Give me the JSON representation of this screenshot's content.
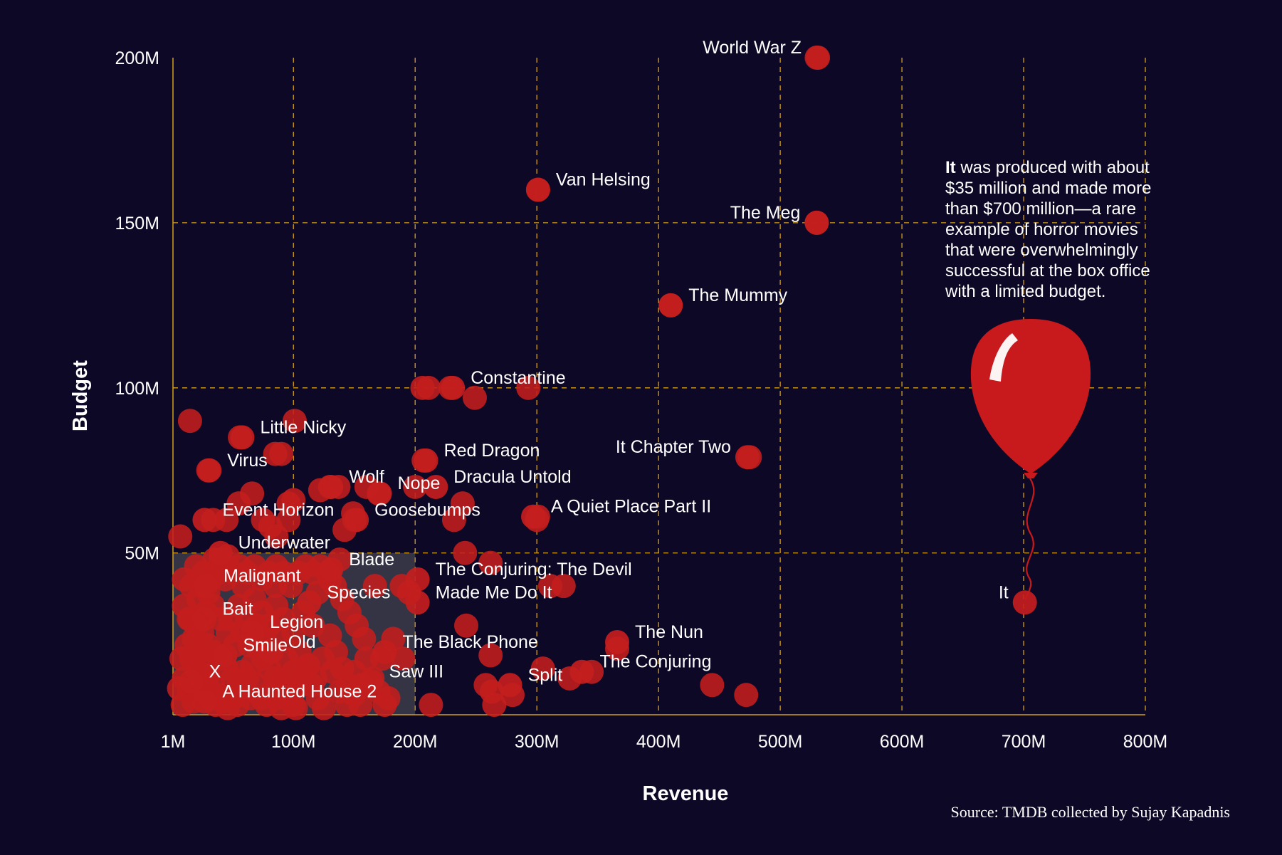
{
  "chart_data": {
    "type": "scatter",
    "xlabel": "Revenue",
    "ylabel": "Budget",
    "xlim": [
      1,
      800
    ],
    "ylim": [
      1,
      200
    ],
    "x_ticks": [
      {
        "v": 1,
        "label": "1M"
      },
      {
        "v": 100,
        "label": "100M"
      },
      {
        "v": 200,
        "label": "200M"
      },
      {
        "v": 300,
        "label": "300M"
      },
      {
        "v": 400,
        "label": "400M"
      },
      {
        "v": 500,
        "label": "500M"
      },
      {
        "v": 600,
        "label": "600M"
      },
      {
        "v": 700,
        "label": "700M"
      },
      {
        "v": 800,
        "label": "800M"
      }
    ],
    "y_ticks": [
      {
        "v": 50,
        "label": "50M"
      },
      {
        "v": 100,
        "label": "100M"
      },
      {
        "v": 150,
        "label": "150M"
      },
      {
        "v": 200,
        "label": "200M"
      }
    ],
    "grid": true,
    "highlight_box": {
      "x": [
        1,
        200
      ],
      "y": [
        1,
        50
      ]
    },
    "colors": {
      "background": "#0d0826",
      "point": "#c41e1e",
      "grid": "#d4a017",
      "text": "#ffffff",
      "highlight": "#3a3a48"
    },
    "labeled_points": [
      {
        "name": "World War Z",
        "x": 531,
        "y": 200,
        "side": "left"
      },
      {
        "name": "Van Helsing",
        "x": 301,
        "y": 160,
        "side": "right"
      },
      {
        "name": "The Meg",
        "x": 530,
        "y": 150,
        "side": "left"
      },
      {
        "name": "The Mummy",
        "x": 410,
        "y": 125,
        "side": "right"
      },
      {
        "name": "Constantine",
        "x": 231,
        "y": 100,
        "side": "right"
      },
      {
        "name": "Little Nicky",
        "x": 58,
        "y": 85,
        "side": "right"
      },
      {
        "name": "Red Dragon",
        "x": 209,
        "y": 78,
        "side": "right"
      },
      {
        "name": "It Chapter Two",
        "x": 473,
        "y": 79,
        "side": "left"
      },
      {
        "name": "Virus",
        "x": 31,
        "y": 75,
        "side": "right"
      },
      {
        "name": "Dracula Untold",
        "x": 217,
        "y": 70,
        "side": "right"
      },
      {
        "name": "Wolf",
        "x": 131,
        "y": 70,
        "side": "right"
      },
      {
        "name": "Nope",
        "x": 171,
        "y": 68,
        "side": "right"
      },
      {
        "name": "A Quiet Place Part II",
        "x": 297,
        "y": 61,
        "side": "right"
      },
      {
        "name": "Event Horizon",
        "x": 27,
        "y": 60,
        "side": "right"
      },
      {
        "name": "Goosebumps",
        "x": 152,
        "y": 60,
        "side": "right"
      },
      {
        "name": "Underwater",
        "x": 40,
        "y": 50,
        "side": "right"
      },
      {
        "name": "Blade",
        "x": 131,
        "y": 45,
        "side": "right"
      },
      {
        "name": "The Conjuring: The Devil",
        "x": 202,
        "y": 42,
        "side": "right"
      },
      {
        "name": "Made Me Do It",
        "x": 202,
        "y": 35,
        "side": "right"
      },
      {
        "name": "Malignant",
        "x": 28,
        "y": 40,
        "side": "right"
      },
      {
        "name": "Species",
        "x": 113,
        "y": 35,
        "side": "right"
      },
      {
        "name": "It",
        "x": 701,
        "y": 35,
        "side": "left"
      },
      {
        "name": "Bait",
        "x": 27,
        "y": 30,
        "side": "right"
      },
      {
        "name": "Legion",
        "x": 66,
        "y": 26,
        "side": "right"
      },
      {
        "name": "The Nun",
        "x": 366,
        "y": 23,
        "side": "right"
      },
      {
        "name": "The Black Phone",
        "x": 175,
        "y": 20,
        "side": "right"
      },
      {
        "name": "Smile",
        "x": 44,
        "y": 19,
        "side": "right"
      },
      {
        "name": "Old",
        "x": 81,
        "y": 20,
        "side": "right"
      },
      {
        "name": "The Conjuring",
        "x": 337,
        "y": 14,
        "side": "right"
      },
      {
        "name": "Saw III",
        "x": 164,
        "y": 11,
        "side": "right"
      },
      {
        "name": "Split",
        "x": 278,
        "y": 10,
        "side": "right"
      },
      {
        "name": "X",
        "x": 16,
        "y": 11,
        "side": "right"
      },
      {
        "name": "A Haunted House 2",
        "x": 27,
        "y": 5,
        "side": "right"
      }
    ],
    "other_points": [
      [
        530,
        200
      ],
      [
        301,
        160
      ],
      [
        530,
        150
      ],
      [
        410,
        125
      ],
      [
        206,
        100
      ],
      [
        211,
        100
      ],
      [
        229,
        100
      ],
      [
        249,
        97
      ],
      [
        293,
        100
      ],
      [
        15,
        90
      ],
      [
        101,
        90
      ],
      [
        56,
        85
      ],
      [
        85,
        80
      ],
      [
        90,
        80
      ],
      [
        30,
        75
      ],
      [
        207,
        78
      ],
      [
        475,
        79
      ],
      [
        130,
        70
      ],
      [
        160,
        70
      ],
      [
        170,
        68
      ],
      [
        122,
        69
      ],
      [
        137,
        70
      ],
      [
        66,
        68
      ],
      [
        96,
        65
      ],
      [
        100,
        66
      ],
      [
        200,
        70
      ],
      [
        239,
        65
      ],
      [
        55,
        65
      ],
      [
        45,
        60
      ],
      [
        34,
        60
      ],
      [
        75,
        60
      ],
      [
        96,
        60
      ],
      [
        149,
        62
      ],
      [
        150,
        60
      ],
      [
        300,
        60
      ],
      [
        301,
        61
      ],
      [
        232,
        60
      ],
      [
        86,
        55
      ],
      [
        81,
        58
      ],
      [
        7,
        55
      ],
      [
        142,
        57
      ],
      [
        35,
        48
      ],
      [
        40,
        48
      ],
      [
        46,
        49
      ],
      [
        241,
        50
      ],
      [
        262,
        47
      ],
      [
        311,
        40
      ],
      [
        322,
        40
      ],
      [
        167,
        40
      ],
      [
        189,
        40
      ],
      [
        195,
        38
      ],
      [
        10,
        42
      ],
      [
        16,
        40
      ],
      [
        24,
        40
      ],
      [
        30,
        38
      ],
      [
        59,
        40
      ],
      [
        85,
        40
      ],
      [
        98,
        40
      ],
      [
        120,
        38
      ],
      [
        130,
        42
      ],
      [
        138,
        48
      ],
      [
        242,
        28
      ],
      [
        262,
        19
      ],
      [
        182,
        24
      ],
      [
        190,
        18
      ],
      [
        366,
        21
      ],
      [
        305,
        15
      ],
      [
        327,
        12
      ],
      [
        345,
        14
      ],
      [
        444,
        10
      ],
      [
        472,
        7
      ],
      [
        263,
        8
      ],
      [
        265,
        4
      ],
      [
        280,
        7
      ],
      [
        258,
        10
      ],
      [
        213,
        4
      ],
      [
        178,
        6
      ],
      [
        173,
        18
      ],
      [
        15,
        30
      ],
      [
        20,
        28
      ],
      [
        25,
        26
      ],
      [
        30,
        22
      ],
      [
        35,
        20
      ],
      [
        40,
        18
      ],
      [
        45,
        15
      ],
      [
        50,
        12
      ],
      [
        55,
        10
      ],
      [
        60,
        8
      ],
      [
        65,
        6
      ],
      [
        12,
        22
      ],
      [
        16,
        18
      ],
      [
        20,
        15
      ],
      [
        24,
        12
      ],
      [
        28,
        9
      ],
      [
        32,
        6
      ],
      [
        36,
        4
      ],
      [
        8,
        18
      ],
      [
        10,
        12
      ],
      [
        14,
        8
      ],
      [
        18,
        5
      ],
      [
        6,
        9
      ],
      [
        9,
        4
      ],
      [
        70,
        22
      ],
      [
        75,
        18
      ],
      [
        80,
        15
      ],
      [
        85,
        12
      ],
      [
        90,
        9
      ],
      [
        95,
        6
      ],
      [
        100,
        4
      ],
      [
        105,
        20
      ],
      [
        110,
        15
      ],
      [
        115,
        10
      ],
      [
        120,
        6
      ],
      [
        125,
        3
      ],
      [
        130,
        25
      ],
      [
        135,
        20
      ],
      [
        140,
        15
      ],
      [
        145,
        10
      ],
      [
        150,
        7
      ],
      [
        155,
        4
      ],
      [
        160,
        18
      ],
      [
        165,
        12
      ],
      [
        170,
        8
      ],
      [
        175,
        4
      ],
      [
        48,
        30
      ],
      [
        55,
        34
      ],
      [
        62,
        30
      ],
      [
        68,
        36
      ],
      [
        74,
        32
      ],
      [
        80,
        28
      ],
      [
        86,
        34
      ],
      [
        92,
        30
      ],
      [
        100,
        26
      ],
      [
        108,
        32
      ],
      [
        116,
        28
      ],
      [
        22,
        36
      ],
      [
        28,
        32
      ],
      [
        34,
        34
      ],
      [
        40,
        30
      ],
      [
        46,
        26
      ],
      [
        52,
        22
      ],
      [
        58,
        26
      ],
      [
        64,
        22
      ],
      [
        70,
        28
      ],
      [
        76,
        24
      ],
      [
        82,
        20
      ],
      [
        88,
        24
      ],
      [
        94,
        18
      ],
      [
        100,
        14
      ],
      [
        106,
        10
      ],
      [
        112,
        16
      ],
      [
        118,
        12
      ],
      [
        124,
        18
      ],
      [
        132,
        14
      ],
      [
        138,
        8
      ],
      [
        144,
        4
      ],
      [
        150,
        14
      ],
      [
        156,
        10
      ],
      [
        10,
        34
      ],
      [
        14,
        30
      ],
      [
        18,
        24
      ],
      [
        22,
        20
      ],
      [
        26,
        16
      ],
      [
        30,
        13
      ],
      [
        34,
        10
      ],
      [
        38,
        7
      ],
      [
        42,
        5
      ],
      [
        46,
        3
      ],
      [
        50,
        6
      ],
      [
        54,
        4
      ],
      [
        58,
        14
      ],
      [
        62,
        12
      ],
      [
        66,
        16
      ],
      [
        70,
        10
      ],
      [
        74,
        6
      ],
      [
        78,
        4
      ],
      [
        82,
        8
      ],
      [
        86,
        6
      ],
      [
        90,
        3
      ],
      [
        94,
        12
      ],
      [
        98,
        8
      ],
      [
        102,
        3
      ],
      [
        20,
        46
      ],
      [
        26,
        44
      ],
      [
        32,
        42
      ],
      [
        38,
        44
      ],
      [
        44,
        42
      ],
      [
        50,
        44
      ],
      [
        56,
        46
      ],
      [
        62,
        44
      ],
      [
        68,
        46
      ],
      [
        74,
        42
      ],
      [
        80,
        44
      ],
      [
        86,
        46
      ],
      [
        92,
        44
      ],
      [
        104,
        44
      ],
      [
        110,
        46
      ],
      [
        116,
        44
      ],
      [
        122,
        46
      ],
      [
        128,
        44
      ],
      [
        134,
        40
      ],
      [
        140,
        36
      ],
      [
        146,
        32
      ],
      [
        152,
        28
      ],
      [
        158,
        24
      ]
    ],
    "annotation": {
      "lead": "It",
      "lines": [
        " was produced with about",
        "$35 million and made more",
        "than $700 million—a rare",
        "example of horror movies",
        "that were overwhelmingly",
        "successful at the box office",
        "with a limited budget."
      ]
    },
    "source": "Source: TMDB collected by Sujay Kapadnis"
  }
}
